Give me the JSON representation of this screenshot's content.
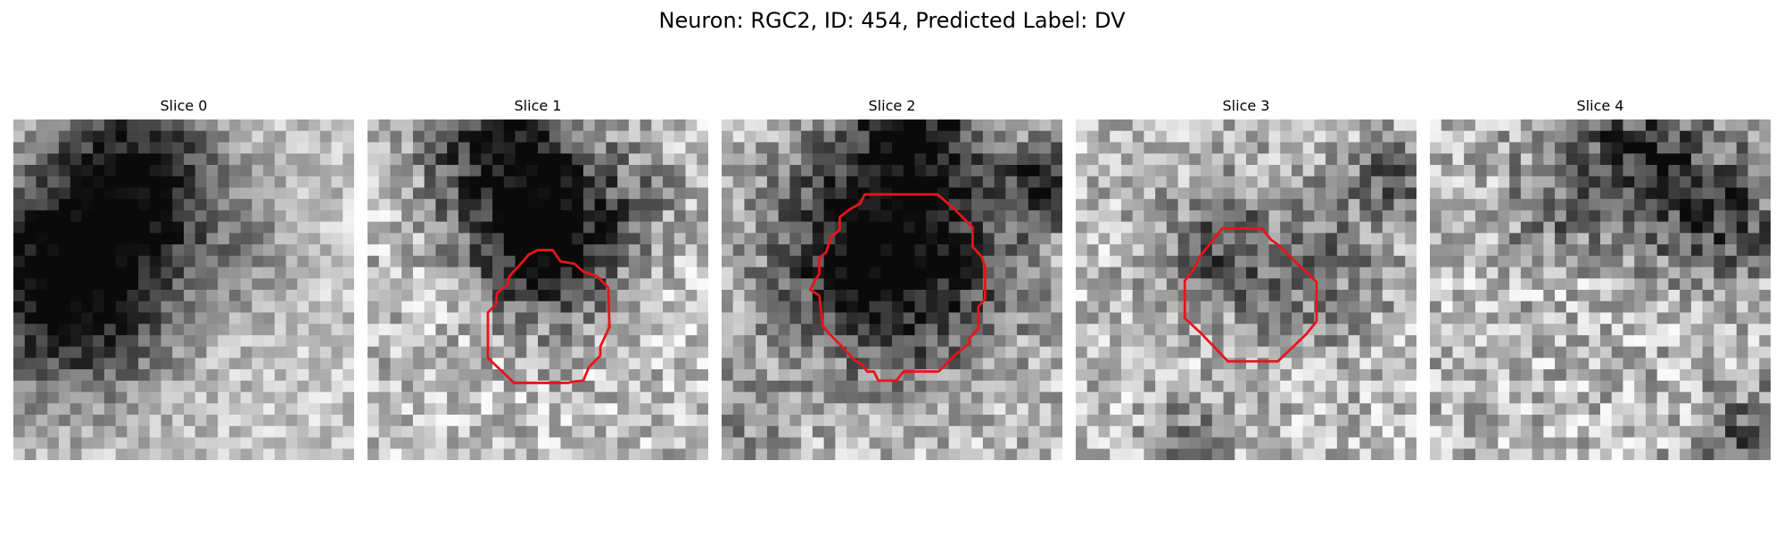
{
  "figure": {
    "title": "Neuron: RGC2, ID: 454, Predicted Label: DV"
  },
  "panels": [
    {
      "title": "Slice 0",
      "has_contour": false
    },
    {
      "title": "Slice 1",
      "has_contour": true
    },
    {
      "title": "Slice 2",
      "has_contour": true
    },
    {
      "title": "Slice 3",
      "has_contour": true
    },
    {
      "title": "Slice 4",
      "has_contour": false
    }
  ],
  "colors": {
    "contour": "#e8141b",
    "background": "#ffffff"
  }
}
